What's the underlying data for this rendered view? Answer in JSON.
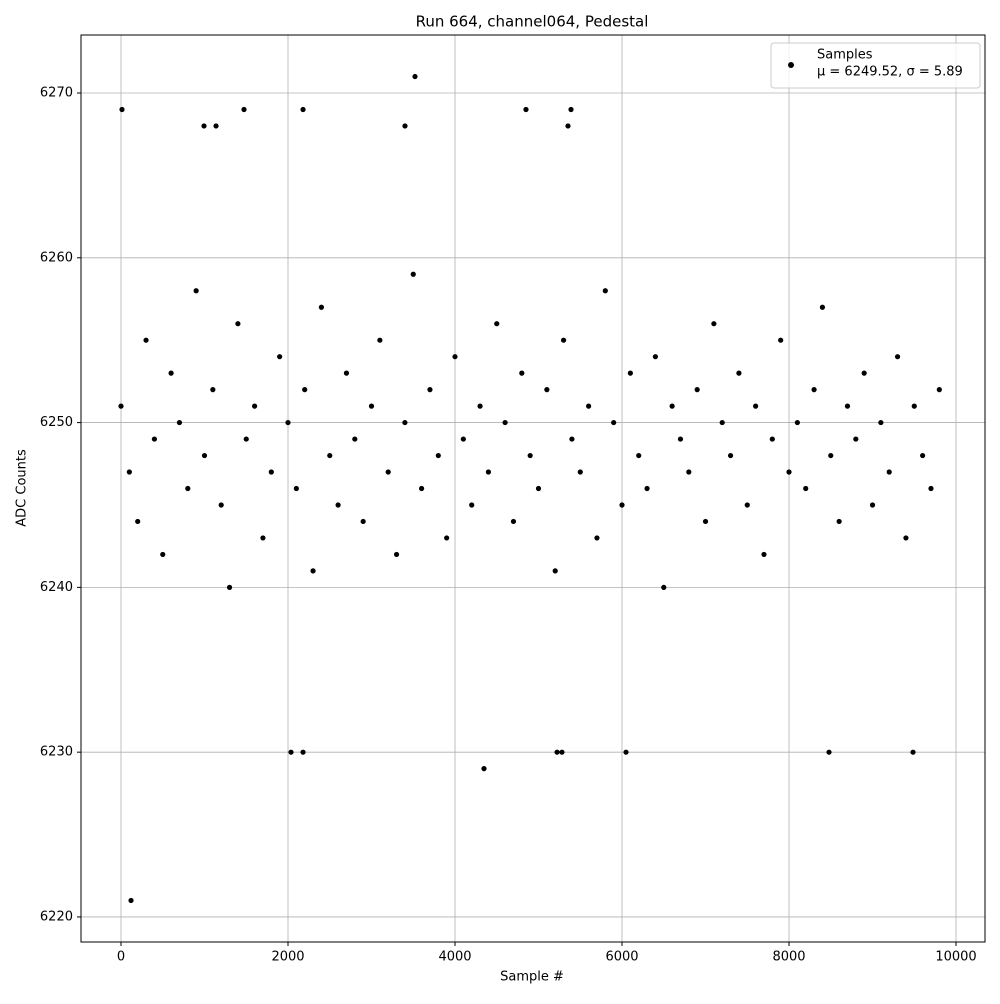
{
  "chart_data": {
    "type": "scatter",
    "title": "Run 664, channel064, Pedestal",
    "xlabel": "Sample #",
    "ylabel": "ADC Counts",
    "legend_position": "upper right",
    "legend_note": "μ = 6249.52, σ = 5.89",
    "grid": true,
    "xlim": [
      -479,
      10347
    ],
    "ylim": [
      6218.48,
      6273.52
    ],
    "xticks": [
      0,
      2000,
      4000,
      6000,
      8000,
      10000
    ],
    "yticks": [
      6220,
      6230,
      6240,
      6250,
      6260,
      6270
    ],
    "series": [
      {
        "name": "Samples",
        "color": "#000000",
        "x": [
          0,
          100,
          200,
          300,
          400,
          500,
          600,
          700,
          800,
          900,
          1000,
          1100,
          1200,
          1300,
          1400,
          1500,
          1600,
          1700,
          1800,
          1900,
          2000,
          2100,
          2200,
          2300,
          2400,
          2500,
          2600,
          2700,
          2800,
          2900,
          3000,
          3100,
          3200,
          3300,
          3400,
          3500,
          3600,
          3700,
          3800,
          3900,
          4000,
          4100,
          4200,
          4300,
          4400,
          4500,
          4600,
          4700,
          4800,
          4900,
          5000,
          5100,
          5200,
          5300,
          5400,
          5500,
          5600,
          5700,
          5800,
          5900,
          6000,
          6100,
          6200,
          6300,
          6400,
          6500,
          6600,
          6700,
          6800,
          6900,
          7000,
          7100,
          7200,
          7300,
          7400,
          7500,
          7600,
          7700,
          7800,
          7900,
          8000,
          8100,
          8200,
          8300,
          8400,
          8500,
          8600,
          8700,
          8800,
          8900,
          9000,
          9100,
          9200,
          9300,
          9400,
          9500,
          9600,
          9700,
          9800,
          12,
          120,
          3521,
          4347,
          2036,
          2180,
          5222,
          5281,
          6048,
          8479,
          9485,
          1473,
          2180,
          4850,
          5389,
          994,
          1138,
          3401,
          5353
        ],
        "values": [
          6251,
          6247,
          6244,
          6255,
          6249,
          6242,
          6253,
          6250,
          6246,
          6258,
          6248,
          6252,
          6245,
          6240,
          6256,
          6249,
          6251,
          6243,
          6247,
          6254,
          6250,
          6246,
          6252,
          6241,
          6257,
          6248,
          6245,
          6253,
          6249,
          6244,
          6251,
          6255,
          6247,
          6242,
          6250,
          6259,
          6246,
          6252,
          6248,
          6243,
          6254,
          6249,
          6245,
          6251,
          6247,
          6256,
          6250,
          6244,
          6253,
          6248,
          6246,
          6252,
          6241,
          6255,
          6249,
          6247,
          6251,
          6243,
          6258,
          6250,
          6245,
          6253,
          6248,
          6246,
          6254,
          6240,
          6251,
          6249,
          6247,
          6252,
          6244,
          6256,
          6250,
          6248,
          6253,
          6245,
          6251,
          6242,
          6249,
          6255,
          6247,
          6250,
          6246,
          6252,
          6257,
          6248,
          6244,
          6251,
          6249,
          6253,
          6245,
          6250,
          6247,
          6254,
          6243,
          6251,
          6248,
          6246,
          6252,
          6269,
          6221,
          6271,
          6229,
          6230,
          6230,
          6230,
          6230,
          6230,
          6230,
          6230,
          6269,
          6269,
          6269,
          6269,
          6268,
          6268,
          6268,
          6268
        ]
      }
    ]
  }
}
